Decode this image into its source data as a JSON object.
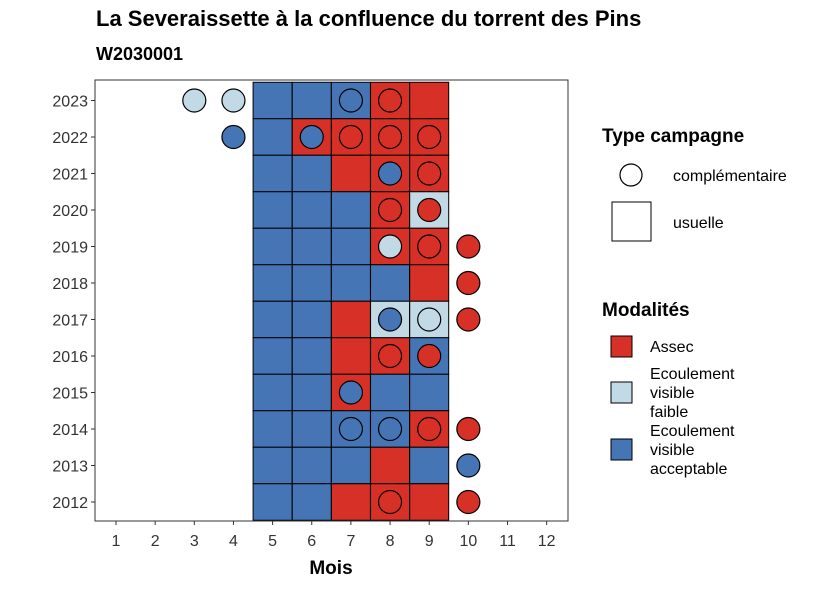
{
  "chart_data": {
    "type": "heatmap",
    "title": "La Severaissette à la confluence du torrent des Pins",
    "subtitle": "W2030001",
    "xlabel": "Mois",
    "ylabel": "",
    "x_ticks": [
      "1",
      "2",
      "3",
      "4",
      "5",
      "6",
      "7",
      "8",
      "9",
      "10",
      "11",
      "12"
    ],
    "y_ticks": [
      "2023",
      "2022",
      "2021",
      "2020",
      "2019",
      "2018",
      "2017",
      "2016",
      "2015",
      "2014",
      "2013",
      "2012"
    ],
    "xlim": [
      1,
      12
    ],
    "colors": {
      "Assec": "#d73027",
      "Ecoulement visible faible": "#c2d9e6",
      "Ecoulement visible acceptable": "#4575b4"
    },
    "legend_campaign": {
      "title": "Type campagne",
      "items": [
        {
          "key": "complementaire",
          "label": "complémentaire",
          "shape": "circle"
        },
        {
          "key": "usuelle",
          "label": "usuelle",
          "shape": "square"
        }
      ]
    },
    "legend_modalites": {
      "title": "Modalités",
      "items": [
        {
          "key": "Assec",
          "lines": [
            "Assec"
          ]
        },
        {
          "key": "Ecoulement visible faible",
          "lines": [
            "Ecoulement",
            "visible",
            "faible"
          ]
        },
        {
          "key": "Ecoulement visible acceptable",
          "lines": [
            "Ecoulement",
            "visible",
            "acceptable"
          ]
        }
      ]
    },
    "usuelle": [
      {
        "year": "2023",
        "month": 5,
        "status": "Ecoulement visible acceptable"
      },
      {
        "year": "2023",
        "month": 6,
        "status": "Ecoulement visible acceptable"
      },
      {
        "year": "2023",
        "month": 7,
        "status": "Ecoulement visible acceptable"
      },
      {
        "year": "2023",
        "month": 8,
        "status": "Assec"
      },
      {
        "year": "2023",
        "month": 9,
        "status": "Assec"
      },
      {
        "year": "2022",
        "month": 5,
        "status": "Ecoulement visible acceptable"
      },
      {
        "year": "2022",
        "month": 6,
        "status": "Assec"
      },
      {
        "year": "2022",
        "month": 7,
        "status": "Assec"
      },
      {
        "year": "2022",
        "month": 8,
        "status": "Assec"
      },
      {
        "year": "2022",
        "month": 9,
        "status": "Assec"
      },
      {
        "year": "2021",
        "month": 5,
        "status": "Ecoulement visible acceptable"
      },
      {
        "year": "2021",
        "month": 6,
        "status": "Ecoulement visible acceptable"
      },
      {
        "year": "2021",
        "month": 7,
        "status": "Assec"
      },
      {
        "year": "2021",
        "month": 8,
        "status": "Assec"
      },
      {
        "year": "2021",
        "month": 9,
        "status": "Assec"
      },
      {
        "year": "2020",
        "month": 5,
        "status": "Ecoulement visible acceptable"
      },
      {
        "year": "2020",
        "month": 6,
        "status": "Ecoulement visible acceptable"
      },
      {
        "year": "2020",
        "month": 7,
        "status": "Ecoulement visible acceptable"
      },
      {
        "year": "2020",
        "month": 8,
        "status": "Assec"
      },
      {
        "year": "2020",
        "month": 9,
        "status": "Ecoulement visible faible"
      },
      {
        "year": "2019",
        "month": 5,
        "status": "Ecoulement visible acceptable"
      },
      {
        "year": "2019",
        "month": 6,
        "status": "Ecoulement visible acceptable"
      },
      {
        "year": "2019",
        "month": 7,
        "status": "Ecoulement visible acceptable"
      },
      {
        "year": "2019",
        "month": 8,
        "status": "Assec"
      },
      {
        "year": "2019",
        "month": 9,
        "status": "Assec"
      },
      {
        "year": "2018",
        "month": 5,
        "status": "Ecoulement visible acceptable"
      },
      {
        "year": "2018",
        "month": 6,
        "status": "Ecoulement visible acceptable"
      },
      {
        "year": "2018",
        "month": 7,
        "status": "Ecoulement visible acceptable"
      },
      {
        "year": "2018",
        "month": 8,
        "status": "Ecoulement visible acceptable"
      },
      {
        "year": "2018",
        "month": 9,
        "status": "Assec"
      },
      {
        "year": "2017",
        "month": 5,
        "status": "Ecoulement visible acceptable"
      },
      {
        "year": "2017",
        "month": 6,
        "status": "Ecoulement visible acceptable"
      },
      {
        "year": "2017",
        "month": 7,
        "status": "Assec"
      },
      {
        "year": "2017",
        "month": 8,
        "status": "Ecoulement visible faible"
      },
      {
        "year": "2017",
        "month": 9,
        "status": "Ecoulement visible faible"
      },
      {
        "year": "2016",
        "month": 5,
        "status": "Ecoulement visible acceptable"
      },
      {
        "year": "2016",
        "month": 6,
        "status": "Ecoulement visible acceptable"
      },
      {
        "year": "2016",
        "month": 7,
        "status": "Assec"
      },
      {
        "year": "2016",
        "month": 8,
        "status": "Assec"
      },
      {
        "year": "2016",
        "month": 9,
        "status": "Ecoulement visible acceptable"
      },
      {
        "year": "2015",
        "month": 5,
        "status": "Ecoulement visible acceptable"
      },
      {
        "year": "2015",
        "month": 6,
        "status": "Ecoulement visible acceptable"
      },
      {
        "year": "2015",
        "month": 7,
        "status": "Assec"
      },
      {
        "year": "2015",
        "month": 8,
        "status": "Ecoulement visible acceptable"
      },
      {
        "year": "2015",
        "month": 9,
        "status": "Ecoulement visible acceptable"
      },
      {
        "year": "2014",
        "month": 5,
        "status": "Ecoulement visible acceptable"
      },
      {
        "year": "2014",
        "month": 6,
        "status": "Ecoulement visible acceptable"
      },
      {
        "year": "2014",
        "month": 7,
        "status": "Ecoulement visible acceptable"
      },
      {
        "year": "2014",
        "month": 8,
        "status": "Ecoulement visible acceptable"
      },
      {
        "year": "2014",
        "month": 9,
        "status": "Assec"
      },
      {
        "year": "2013",
        "month": 5,
        "status": "Ecoulement visible acceptable"
      },
      {
        "year": "2013",
        "month": 6,
        "status": "Ecoulement visible acceptable"
      },
      {
        "year": "2013",
        "month": 7,
        "status": "Ecoulement visible acceptable"
      },
      {
        "year": "2013",
        "month": 8,
        "status": "Assec"
      },
      {
        "year": "2013",
        "month": 9,
        "status": "Ecoulement visible acceptable"
      },
      {
        "year": "2012",
        "month": 5,
        "status": "Ecoulement visible acceptable"
      },
      {
        "year": "2012",
        "month": 6,
        "status": "Ecoulement visible acceptable"
      },
      {
        "year": "2012",
        "month": 7,
        "status": "Assec"
      },
      {
        "year": "2012",
        "month": 8,
        "status": "Assec"
      },
      {
        "year": "2012",
        "month": 9,
        "status": "Assec"
      }
    ],
    "complementaire": [
      {
        "year": "2023",
        "month": 3,
        "status": "Ecoulement visible faible"
      },
      {
        "year": "2023",
        "month": 4,
        "status": "Ecoulement visible faible"
      },
      {
        "year": "2023",
        "month": 7,
        "status": "Ecoulement visible acceptable"
      },
      {
        "year": "2023",
        "month": 8,
        "status": "Assec"
      },
      {
        "year": "2022",
        "month": 4,
        "status": "Ecoulement visible acceptable"
      },
      {
        "year": "2022",
        "month": 6,
        "status": "Ecoulement visible acceptable"
      },
      {
        "year": "2022",
        "month": 7,
        "status": "Assec"
      },
      {
        "year": "2022",
        "month": 8,
        "status": "Assec"
      },
      {
        "year": "2022",
        "month": 9,
        "status": "Assec"
      },
      {
        "year": "2021",
        "month": 8,
        "status": "Ecoulement visible acceptable"
      },
      {
        "year": "2021",
        "month": 9,
        "status": "Assec"
      },
      {
        "year": "2020",
        "month": 8,
        "status": "Assec"
      },
      {
        "year": "2020",
        "month": 9,
        "status": "Assec"
      },
      {
        "year": "2019",
        "month": 8,
        "status": "Ecoulement visible faible"
      },
      {
        "year": "2019",
        "month": 9,
        "status": "Assec"
      },
      {
        "year": "2019",
        "month": 10,
        "status": "Assec"
      },
      {
        "year": "2018",
        "month": 10,
        "status": "Assec"
      },
      {
        "year": "2017",
        "month": 8,
        "status": "Ecoulement visible acceptable"
      },
      {
        "year": "2017",
        "month": 9,
        "status": "Ecoulement visible faible"
      },
      {
        "year": "2017",
        "month": 10,
        "status": "Assec"
      },
      {
        "year": "2016",
        "month": 8,
        "status": "Assec"
      },
      {
        "year": "2016",
        "month": 9,
        "status": "Assec"
      },
      {
        "year": "2015",
        "month": 7,
        "status": "Ecoulement visible acceptable"
      },
      {
        "year": "2014",
        "month": 7,
        "status": "Ecoulement visible acceptable"
      },
      {
        "year": "2014",
        "month": 8,
        "status": "Ecoulement visible acceptable"
      },
      {
        "year": "2014",
        "month": 9,
        "status": "Assec"
      },
      {
        "year": "2014",
        "month": 10,
        "status": "Assec"
      },
      {
        "year": "2013",
        "month": 10,
        "status": "Ecoulement visible acceptable"
      },
      {
        "year": "2012",
        "month": 8,
        "status": "Assec"
      },
      {
        "year": "2012",
        "month": 10,
        "status": "Assec"
      }
    ]
  }
}
